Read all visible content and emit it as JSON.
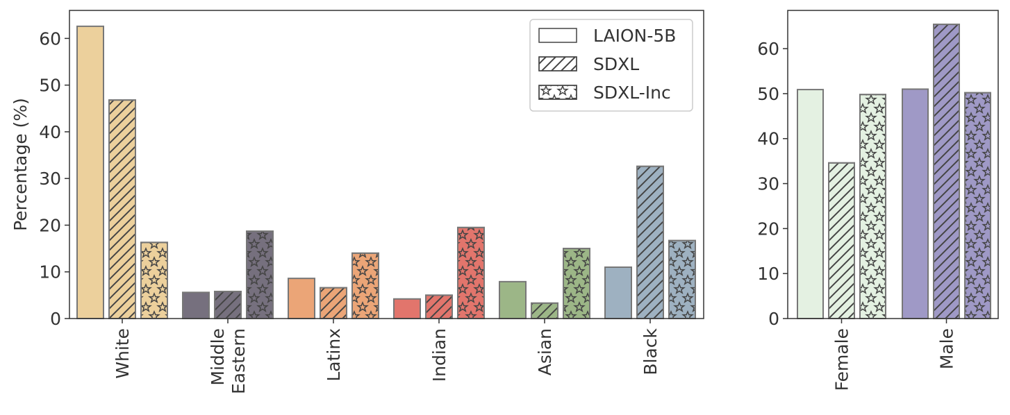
{
  "chart_data": [
    {
      "type": "bar",
      "title": "",
      "xlabel": "",
      "ylabel": "Percentage (%)",
      "ylim": [
        0,
        66
      ],
      "yticks": [
        0,
        10,
        20,
        30,
        40,
        50,
        60
      ],
      "categories": [
        "White",
        "Middle\nEastern",
        "Latinx",
        "Indian",
        "Asian",
        "Black"
      ],
      "category_colors": [
        "#ecd09c",
        "#76707e",
        "#eba577",
        "#e2756c",
        "#9cb687",
        "#9eb1c1"
      ],
      "series": [
        {
          "name": "LAION-5B",
          "pattern": "solid",
          "values": [
            62.6,
            5.6,
            8.6,
            4.2,
            7.9,
            11.0
          ]
        },
        {
          "name": "SDXL",
          "pattern": "hatch",
          "values": [
            46.8,
            5.8,
            6.6,
            5.0,
            3.3,
            32.6
          ]
        },
        {
          "name": "SDXL-Inc",
          "pattern": "stars",
          "values": [
            16.3,
            18.7,
            14.0,
            19.5,
            15.0,
            16.7
          ]
        }
      ],
      "legend": {
        "position": "top-right",
        "entries": [
          "LAION-5B",
          "SDXL",
          "SDXL-Inc"
        ]
      },
      "grid": false
    },
    {
      "type": "bar",
      "title": "",
      "xlabel": "",
      "ylabel": "",
      "ylim": [
        0,
        68.5
      ],
      "yticks": [
        0,
        10,
        20,
        30,
        40,
        50,
        60
      ],
      "categories": [
        "Female",
        "Male"
      ],
      "category_colors": [
        "#e4f1e2",
        "#9f99c6"
      ],
      "series": [
        {
          "name": "LAION-5B",
          "pattern": "solid",
          "values": [
            50.9,
            51.0
          ]
        },
        {
          "name": "SDXL",
          "pattern": "hatch",
          "values": [
            34.6,
            65.4
          ]
        },
        {
          "name": "SDXL-Inc",
          "pattern": "stars",
          "values": [
            49.8,
            50.2
          ]
        }
      ],
      "grid": false
    }
  ]
}
